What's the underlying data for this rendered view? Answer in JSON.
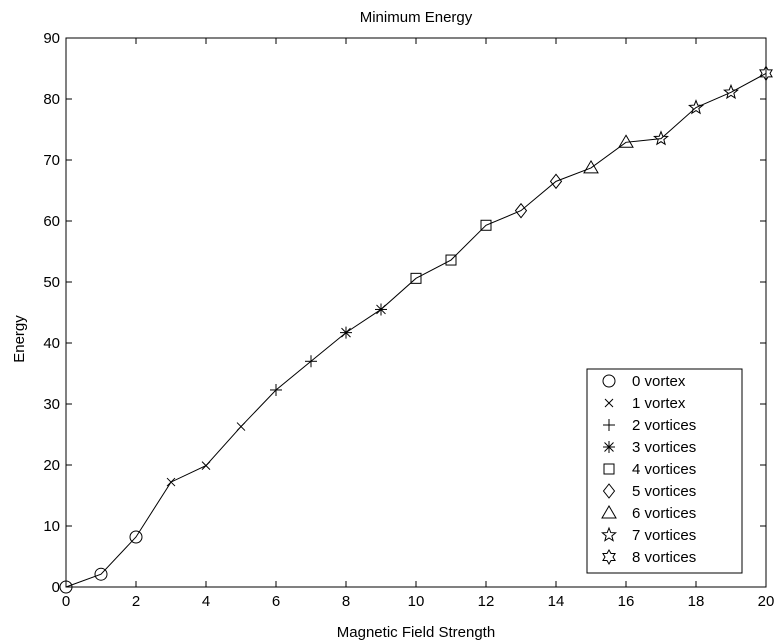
{
  "chart_data": {
    "type": "line",
    "title": "Minimum Energy",
    "xlabel": "Magnetic Field Strength",
    "ylabel": "Energy",
    "xlim": [
      0,
      20
    ],
    "ylim": [
      0,
      90
    ],
    "xticks": [
      0,
      2,
      4,
      6,
      8,
      10,
      12,
      14,
      16,
      18,
      20
    ],
    "yticks": [
      0,
      10,
      20,
      30,
      40,
      50,
      60,
      70,
      80,
      90
    ],
    "grid": false,
    "legend_position": "bottom-right",
    "line_color": "#000000",
    "series": [
      {
        "name": "0 vortex",
        "marker": "circle",
        "x": [
          0,
          1,
          2
        ],
        "y": [
          0.0,
          2.1,
          8.2
        ]
      },
      {
        "name": "1 vortex",
        "marker": "x",
        "x": [
          3,
          4,
          5
        ],
        "y": [
          17.2,
          19.9,
          26.3
        ]
      },
      {
        "name": "2 vortices",
        "marker": "plus",
        "x": [
          6,
          7
        ],
        "y": [
          32.3,
          37.0
        ]
      },
      {
        "name": "3 vortices",
        "marker": "asterisk",
        "x": [
          8,
          9
        ],
        "y": [
          41.7,
          45.5
        ]
      },
      {
        "name": "4 vortices",
        "marker": "square",
        "x": [
          10,
          11,
          12
        ],
        "y": [
          50.6,
          53.6,
          59.3
        ]
      },
      {
        "name": "5 vortices",
        "marker": "diamond",
        "x": [
          13,
          14
        ],
        "y": [
          61.7,
          66.5
        ]
      },
      {
        "name": "6 vortices",
        "marker": "triangle",
        "x": [
          15,
          16
        ],
        "y": [
          68.7,
          72.9
        ]
      },
      {
        "name": "7 vortices",
        "marker": "pentagram",
        "x": [
          17,
          18,
          19
        ],
        "y": [
          73.5,
          78.6,
          81.1
        ]
      },
      {
        "name": "8 vortices",
        "marker": "hexagram",
        "x": [
          20
        ],
        "y": [
          84.2
        ]
      }
    ]
  }
}
